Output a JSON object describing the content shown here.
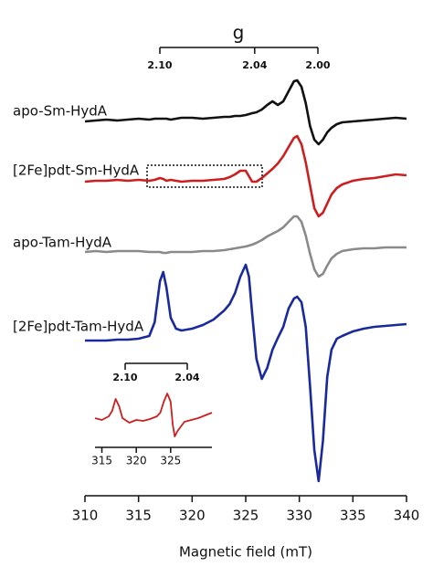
{
  "chart_data": [
    {
      "type": "line",
      "xlabel": "Magnetic field (mT)",
      "x2label": "g",
      "x": [
        310,
        311,
        312,
        313,
        314,
        315,
        316,
        316.5,
        317,
        317.3,
        317.6,
        318,
        318.5,
        319,
        320,
        321,
        322,
        323,
        323.5,
        324,
        324.5,
        325,
        325.3,
        325.6,
        326,
        326.5,
        327,
        327.5,
        328,
        328.5,
        329,
        329.5,
        329.8,
        330.2,
        330.6,
        331,
        331.4,
        331.8,
        332.2,
        332.6,
        333,
        333.5,
        334,
        335,
        336,
        337,
        338,
        339,
        340
      ],
      "series": [
        {
          "name": "apo-Sm-HydA",
          "color": "#111111",
          "values": [
            410,
            411,
            412,
            411,
            412,
            413,
            412,
            413,
            413,
            413,
            413,
            412,
            413,
            414,
            414,
            413,
            414,
            415,
            415,
            416,
            416,
            417,
            418,
            419,
            420,
            423,
            428,
            432,
            428,
            432,
            443,
            454,
            455,
            448,
            430,
            405,
            390,
            385,
            390,
            398,
            403,
            407,
            409,
            410,
            411,
            412,
            413,
            414,
            413
          ]
        },
        {
          "name": "[2Fe]pdt-Sm-HydA",
          "color": "#cc1f1f",
          "values": [
            344,
            345,
            345,
            346,
            345,
            346,
            345,
            346,
            348,
            347,
            345,
            346,
            345,
            344,
            345,
            345,
            346,
            347,
            349,
            352,
            356,
            356,
            350,
            344,
            344,
            348,
            353,
            358,
            364,
            372,
            382,
            392,
            394,
            385,
            365,
            340,
            315,
            306,
            310,
            320,
            330,
            337,
            341,
            345,
            347,
            348,
            350,
            352,
            351
          ]
        },
        {
          "name": "apo-Tam-HydA",
          "color": "#8a8a8a",
          "values": [
            267,
            268,
            267,
            268,
            268,
            268,
            267,
            267,
            267,
            266,
            266,
            267,
            267,
            267,
            267,
            268,
            268,
            269,
            270,
            271,
            272,
            273,
            274,
            275,
            277,
            280,
            284,
            287,
            290,
            294,
            300,
            306,
            306,
            300,
            285,
            265,
            248,
            240,
            243,
            252,
            260,
            265,
            268,
            270,
            271,
            271,
            272,
            272,
            272
          ]
        },
        {
          "name": "[2Fe]pdt-Tam-HydA",
          "color": "#1a2a9c",
          "values": [
            170,
            170,
            170,
            171,
            171,
            172,
            175,
            190,
            235,
            245,
            228,
            195,
            183,
            181,
            183,
            187,
            193,
            203,
            210,
            222,
            240,
            253,
            240,
            200,
            150,
            128,
            140,
            160,
            173,
            185,
            205,
            216,
            218,
            212,
            185,
            120,
            50,
            16,
            60,
            130,
            160,
            172,
            175,
            180,
            183,
            185,
            186,
            187,
            188
          ]
        }
      ],
      "xlim": [
        310,
        340
      ],
      "xticks": [
        310,
        315,
        320,
        325,
        330,
        335,
        340
      ],
      "ylim": [
        0,
        500
      ],
      "x2lim": [
        2.1,
        2.0
      ],
      "x2ticks": [
        {
          "value": 2.1,
          "label": "2.10"
        },
        2.04,
        {
          "value": 2.0,
          "label": "2.00"
        }
      ]
    },
    {
      "type": "line",
      "x": [
        314,
        315,
        316,
        316.5,
        317,
        317.5,
        318,
        319,
        320,
        321,
        322,
        323,
        323.5,
        324,
        324.5,
        325,
        325.3,
        325.6,
        326,
        327,
        328,
        329,
        330,
        331
      ],
      "series": [
        {
          "color": "#cc1f1f",
          "values": [
            32,
            30,
            34,
            40,
            53,
            45,
            32,
            27,
            30,
            29,
            31,
            34,
            38,
            50,
            59,
            50,
            25,
            12,
            18,
            28,
            30,
            32,
            35,
            38
          ]
        }
      ],
      "xlim": [
        314,
        331
      ],
      "xticks": [
        315,
        320,
        325
      ],
      "ylim": [
        0,
        70
      ],
      "x2lim": [
        2.1,
        2.04
      ],
      "x2ticks": [
        {
          "value": 2.1,
          "label": "2.10"
        },
        2.04
      ]
    }
  ]
}
